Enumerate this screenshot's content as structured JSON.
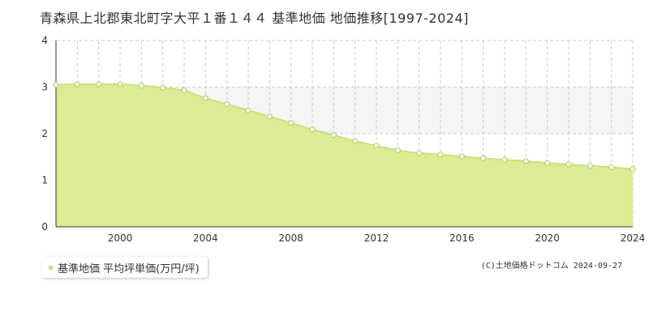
{
  "title": "青森県上北郡東北町字大平１番１４４ 基準地価 地価推移[1997-2024]",
  "copyright": "(C)土地価格ドットコム 2024-09-27",
  "colors": {
    "fill": "#dbec94",
    "line": "#c9e27a",
    "marker_fill": "#ffffff",
    "marker_stroke": "#b5d36a",
    "grid": "#cccccc",
    "band": "#f5f5f5",
    "axis": "#333333"
  },
  "chart_data": {
    "type": "area",
    "title": "青森県上北郡東北町字大平１番１４４ 基準地価 地価推移[1997-2024]",
    "xlabel": "",
    "ylabel": "",
    "xlim": [
      1997,
      2024
    ],
    "ylim": [
      0,
      4
    ],
    "x_ticks": [
      "2000",
      "2004",
      "2008",
      "2012",
      "2016",
      "2020",
      "2024"
    ],
    "y_ticks": [
      "0",
      "1",
      "2",
      "3",
      "4"
    ],
    "grid": true,
    "legend": "bottom-left",
    "series": [
      {
        "name": "基準地価 平均坪単価(万円/坪)",
        "x": [
          1997,
          1998,
          1999,
          2000,
          2001,
          2002,
          2003,
          2004,
          2005,
          2006,
          2007,
          2008,
          2009,
          2010,
          2011,
          2012,
          2013,
          2014,
          2015,
          2016,
          2017,
          2018,
          2019,
          2020,
          2021,
          2022,
          2023,
          2024
        ],
        "values": [
          3.05,
          3.06,
          3.06,
          3.06,
          3.03,
          2.99,
          2.93,
          2.76,
          2.63,
          2.5,
          2.37,
          2.23,
          2.09,
          1.97,
          1.84,
          1.74,
          1.64,
          1.58,
          1.55,
          1.51,
          1.47,
          1.44,
          1.41,
          1.37,
          1.34,
          1.31,
          1.28,
          1.24
        ]
      }
    ]
  }
}
